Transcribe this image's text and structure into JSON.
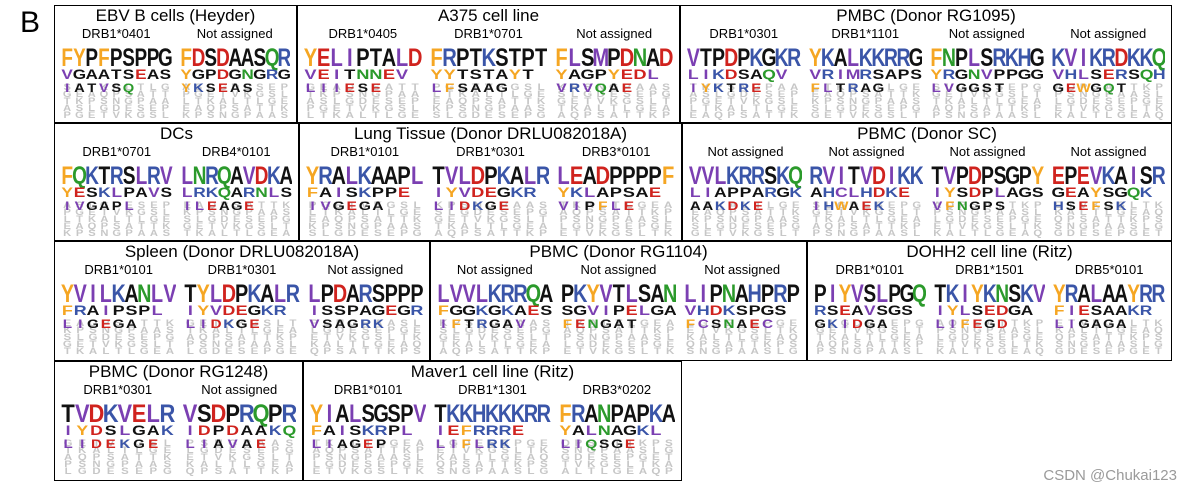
{
  "figure": {
    "panel_letter": "B",
    "watermark": "CSDN @Chukai123"
  },
  "colors": {
    "hydrophobic": "#7b3fb2",
    "aromatic": "#f5a623",
    "acidic": "#d0231e",
    "basic": "#3a55a8",
    "polar": "#2b9a2b",
    "small": "#111111",
    "background": "#c7c7c7"
  },
  "boxes": [
    {
      "title": "EBV B cells (Heyder)",
      "logos": [
        {
          "label": "DRB1*0401",
          "top": "FYPFPSPPG",
          "mid": "VGAATSEAS",
          "low": "IATVSQ"
        },
        {
          "label": "Not assigned",
          "top": "FDSDAASQR",
          "mid": "YGPDGNGRG",
          "low": "YKSEAS"
        }
      ]
    },
    {
      "title": "A375 cell line",
      "logos": [
        {
          "label": "DRB1*0405",
          "top": "YELIPTALD",
          "mid": "VEITNNEV",
          "low": "LIIESE"
        },
        {
          "label": "DRB1*0701",
          "top": "FRPTKSTPT",
          "mid": "YYTSTAYT",
          "low": "LFSAAG"
        },
        {
          "label": "Not assigned",
          "top": "FLSMPDNAD",
          "mid": "YAGPYEDL",
          "low": "VRVQAE"
        }
      ]
    },
    {
      "title": "PMBC (Donor RG1095)",
      "logos": [
        {
          "label": "DRB1*0301",
          "top": "VTPDPKGKR",
          "mid": "LIKDSAQV",
          "low": "IYKTRE"
        },
        {
          "label": "DRB1*1101",
          "top": "YKALKKRRG",
          "mid": "VRIMRSAPS",
          "low": "FLTRAG"
        },
        {
          "label": "Not assigned",
          "top": "FNPLSRKHG",
          "mid": "YRGNVPPGG",
          "low": "LVGGST"
        },
        {
          "label": "Not assigned",
          "top": "KVIKRDKKQ",
          "mid": "VHLSERSQH",
          "low": "GEWGQT"
        }
      ]
    },
    {
      "title": "DCs",
      "logos": [
        {
          "label": "DRB1*0701",
          "top": "FQKTRSLRV",
          "mid": "YESKLPAVS",
          "low": "IVGAPL"
        },
        {
          "label": "DRB4*0101",
          "top": "LNRQAVDKA",
          "mid": "LRKQARNLS",
          "low": "ILEAGE"
        }
      ]
    },
    {
      "title": "Lung Tissue (Donor DRLU082018A)",
      "logos": [
        {
          "label": "DRB1*0101",
          "top": "YRALKAAPL",
          "mid": "FAISKPPE",
          "low": "IVGEGA"
        },
        {
          "label": "DRB1*0301",
          "top": "TVLDPKALR",
          "mid": "IYVDEGKR",
          "low": "LIDKGE"
        },
        {
          "label": "DRB3*0101",
          "top": "LEADPPPPF",
          "mid": "YKLAPSAE",
          "low": "VIPFLE"
        }
      ]
    },
    {
      "title": "PBMC (Donor SC)",
      "logos": [
        {
          "label": "Not assigned",
          "top": "VVLKRRSKQ",
          "mid": "LIAPPARGK",
          "low": "AAKDKE"
        },
        {
          "label": "Not assigned",
          "top": "RVITVDIKK",
          "mid": "AHCLHDKE",
          "low": "IHWAEK"
        },
        {
          "label": "Not assigned",
          "top": "TVPDPSGPY",
          "mid": "IYSDPLAGS",
          "low": "VFNGPS"
        },
        {
          "label": "Not assigned",
          "top": "EPEVKAISR",
          "mid": "GEAYSGQK",
          "low": "HSEFSK"
        }
      ]
    },
    {
      "title": "Spleen (Donor DRLU082018A)",
      "logos": [
        {
          "label": "DRB1*0101",
          "top": "YVILKANLV",
          "mid": "FRAIPSPL",
          "low": "LIGEGA"
        },
        {
          "label": "DRB1*0301",
          "top": "TYLDPKALR",
          "mid": "IYVDEGKR",
          "low": "LIDKGE"
        },
        {
          "label": "Not assigned",
          "top": "LPDARSPPP",
          "mid": "ISSPAGEGR",
          "low": "VSAGRK"
        }
      ]
    },
    {
      "title": "PBMC (Donor RG1104)",
      "logos": [
        {
          "label": "Not assigned",
          "top": "LVVLKRRQA",
          "mid": "FGGKGKAES",
          "low": "IFTRGAV"
        },
        {
          "label": "Not assigned",
          "top": "PKYVTLSAN",
          "mid": "SGVIPELGA",
          "low": "FENGAT"
        },
        {
          "label": "Not assigned",
          "top": "LIPNAHPRP",
          "mid": "VHDKSPGS",
          "low": "FCSNAEC"
        }
      ]
    },
    {
      "title": "DOHH2 cell line (Ritz)",
      "logos": [
        {
          "label": "DRB1*0101",
          "top": "PIYVSLPGQ",
          "mid": "RSEAVSGS",
          "low": "GKIDGA"
        },
        {
          "label": "DRB1*1501",
          "top": "TKIYKNSKV",
          "mid": "IYLSEDGA",
          "low": "LIFEGD"
        },
        {
          "label": "DRB5*0101",
          "top": "YRALAAYRR",
          "mid": "FIESAAKR",
          "low": "LIGAGA"
        }
      ]
    },
    {
      "title": "PBMC (Donor RG1248)",
      "logos": [
        {
          "label": "DRB1*0301",
          "top": "TVDKVELR",
          "mid": "IYDSLGAKE",
          "low": "LIDEKGE"
        },
        {
          "label": "Not assigned",
          "top": "VSDPRQPR",
          "mid": "IDPDAAKQ",
          "low": "LIAVAE"
        }
      ]
    },
    {
      "title": "Maver1 cell line (Ritz)",
      "logos": [
        {
          "label": "DRB1*0101",
          "top": "YIALSGSPV",
          "mid": "FAISKRPL",
          "low": "LIAGEP"
        },
        {
          "label": "DRB1*1301",
          "top": "TKKHKKKRR",
          "mid": "IEFRRRE",
          "low": "LIFLRK"
        },
        {
          "label": "DRB3*0202",
          "top": "FRANPAPKA",
          "mid": "YALNAGKL",
          "low": "LIQSGE"
        }
      ]
    }
  ]
}
